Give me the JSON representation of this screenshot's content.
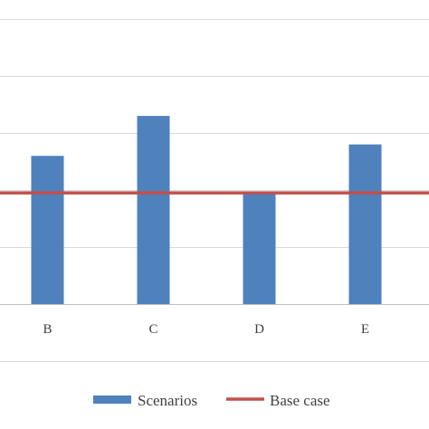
{
  "chart_data": {
    "type": "bar",
    "title": "",
    "xlabel": "",
    "ylabel": "",
    "categories": [
      "B",
      "C",
      "D",
      "E"
    ],
    "series": [
      {
        "name": "Scenarios",
        "type": "bar",
        "color": "#4f81bd",
        "values": [
          2.6,
          3.3,
          1.95,
          2.8
        ]
      }
    ],
    "reference_lines": [
      {
        "name": "Base case",
        "color": "#c0504d",
        "value": 1.95
      }
    ],
    "ylim": [
      0,
      5
    ],
    "y_gridlines": [
      -1,
      0,
      1,
      2,
      3,
      4,
      5,
      6
    ],
    "grid": true,
    "legend": {
      "position": "bottom",
      "entries": [
        {
          "label": "Scenarios",
          "marker": "bar",
          "color": "#4f81bd"
        },
        {
          "label": "Base case",
          "marker": "line",
          "color": "#c0504d"
        }
      ]
    }
  }
}
